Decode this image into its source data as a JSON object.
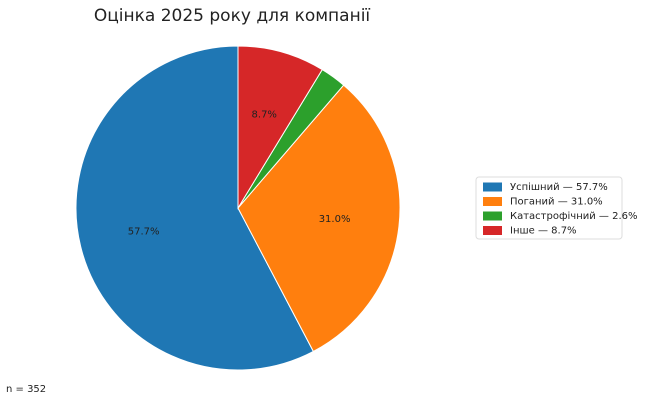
{
  "chart_data": {
    "type": "pie",
    "title": "Оцінка 2025 року для компанії",
    "categories": [
      "Успішний — 57.7%",
      "Поганий — 31.0%",
      "Катастрофічний — 2.6%",
      "Інше — 8.7%"
    ],
    "values": [
      57.7,
      31.0,
      2.6,
      8.7
    ],
    "value_labels": [
      "57.7%",
      "31.0%",
      "",
      "8.7%"
    ],
    "colors": [
      "#1f77b4",
      "#ff7f0e",
      "#2ca02c",
      "#d62728"
    ],
    "note": "n = 352"
  }
}
